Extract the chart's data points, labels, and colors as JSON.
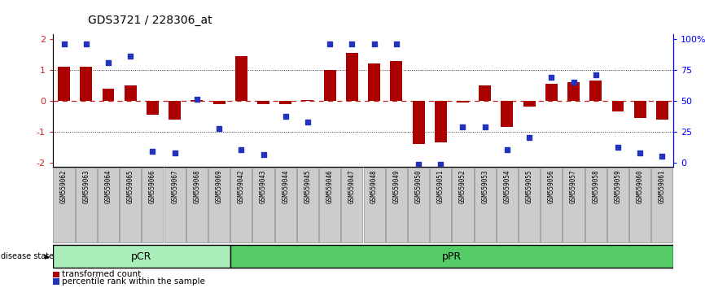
{
  "title": "GDS3721 / 228306_at",
  "samples": [
    "GSM559062",
    "GSM559063",
    "GSM559064",
    "GSM559065",
    "GSM559066",
    "GSM559067",
    "GSM559068",
    "GSM559069",
    "GSM559042",
    "GSM559043",
    "GSM559044",
    "GSM559045",
    "GSM559046",
    "GSM559047",
    "GSM559048",
    "GSM559049",
    "GSM559050",
    "GSM559051",
    "GSM559052",
    "GSM559053",
    "GSM559054",
    "GSM559055",
    "GSM559056",
    "GSM559057",
    "GSM559058",
    "GSM559059",
    "GSM559060",
    "GSM559061"
  ],
  "bar_values": [
    1.1,
    1.1,
    0.4,
    0.5,
    -0.45,
    -0.6,
    0.02,
    -0.1,
    1.45,
    -0.1,
    -0.1,
    0.02,
    1.0,
    1.55,
    1.2,
    1.3,
    -1.4,
    -1.35,
    -0.05,
    0.5,
    -0.85,
    -0.2,
    0.55,
    0.6,
    0.65,
    -0.35,
    -0.55,
    -0.6
  ],
  "dot_values_y": [
    1.85,
    1.85,
    1.25,
    1.45,
    -1.65,
    -1.7,
    0.05,
    -0.9,
    -1.6,
    -1.75,
    -0.5,
    -0.7,
    1.85,
    1.85,
    1.85,
    1.85,
    -2.05,
    -2.05,
    -0.85,
    -0.85,
    -1.6,
    -1.2,
    0.75,
    0.6,
    0.85,
    -1.5,
    -1.7,
    -1.8
  ],
  "pcr_count": 8,
  "bar_color": "#AA0000",
  "dot_color": "#2233BB",
  "ylim": [
    -2.15,
    2.15
  ],
  "yticks": [
    -2,
    -1,
    0,
    1,
    2
  ],
  "ytick_color": "#CC2222",
  "y2ticks_pos": [
    -2.0,
    -1.0,
    0.0,
    1.0,
    2.0
  ],
  "y2tick_labels": [
    "0",
    "25",
    "50",
    "75",
    "100%"
  ],
  "hline_zero_color": "#CC2222",
  "dotline_color": "#333333",
  "pcr_color": "#AAEEBB",
  "ppr_color": "#55CC66",
  "label_bar": "transformed count",
  "label_dot": "percentile rank within the sample",
  "disease_state_label": "disease state",
  "pcr_label": "pCR",
  "ppr_label": "pPR",
  "title_fontsize": 10,
  "xtick_box_facecolor": "#CCCCCC",
  "xtick_box_edgecolor": "#888888"
}
